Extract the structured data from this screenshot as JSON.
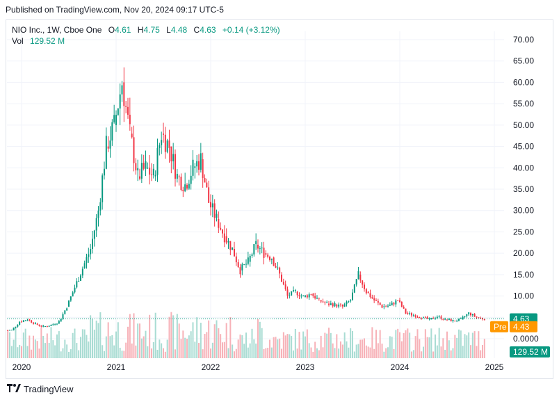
{
  "header": {
    "published": "Published on TradingView.com, Nov 20, 2024 09:17 UTC-5"
  },
  "legend": {
    "symbol": "NIO Inc., 1W, Cboe One",
    "o_label": "O",
    "o_value": "4.61",
    "h_label": "H",
    "h_value": "4.75",
    "l_label": "L",
    "l_value": "4.48",
    "c_label": "C",
    "c_value": "4.63",
    "change": "+0.14 (+3.12%)",
    "vol_label": "Vol",
    "vol_value": "129.52 M"
  },
  "footer": {
    "brand": "TradingView"
  },
  "chart_data": {
    "type": "candlestick",
    "x_tick_labels": [
      "2020",
      "2021",
      "2022",
      "2023",
      "2024",
      "2025"
    ],
    "y_tick_labels": [
      "70.00",
      "65.00",
      "60.00",
      "55.00",
      "50.00",
      "45.00",
      "40.00",
      "35.00",
      "30.00",
      "25.00",
      "20.00",
      "15.00",
      "10.00",
      "5.00",
      "0.0000"
    ],
    "ylim": [
      0,
      72
    ],
    "grid": true,
    "last_price_label": "4.63",
    "premarket_label": "Pre",
    "premarket_value": "4.43",
    "volume_label": "129.52 M",
    "colors": {
      "up": "#089981",
      "down": "#f23645",
      "premarket": "#ff9800",
      "grid": "#f0f3fa"
    },
    "series": [
      {
        "name": "NIO Inc.",
        "dates": [
          "2019-11",
          "2019-12",
          "2020-01",
          "2020-02",
          "2020-03",
          "2020-04",
          "2020-05",
          "2020-06",
          "2020-07",
          "2020-08",
          "2020-09",
          "2020-10",
          "2020-11",
          "2020-12",
          "2021-01",
          "2021-02",
          "2021-03",
          "2021-04",
          "2021-05",
          "2021-06",
          "2021-07",
          "2021-08",
          "2021-09",
          "2021-10",
          "2021-11",
          "2021-12",
          "2022-01",
          "2022-02",
          "2022-03",
          "2022-04",
          "2022-05",
          "2022-06",
          "2022-07",
          "2022-08",
          "2022-09",
          "2022-10",
          "2022-11",
          "2022-12",
          "2023-01",
          "2023-02",
          "2023-03",
          "2023-04",
          "2023-05",
          "2023-06",
          "2023-07",
          "2023-08",
          "2023-09",
          "2023-10",
          "2023-11",
          "2023-12",
          "2024-01",
          "2024-02",
          "2024-03",
          "2024-04",
          "2024-05",
          "2024-06",
          "2024-07",
          "2024-08",
          "2024-09",
          "2024-10",
          "2024-11"
        ],
        "close": [
          2.0,
          4.0,
          4.5,
          3.5,
          2.8,
          3.2,
          4.0,
          7.5,
          12.0,
          16.5,
          21.0,
          30.0,
          45.0,
          50.0,
          60.0,
          48.0,
          38.0,
          40.0,
          38.0,
          48.0,
          45.0,
          38.0,
          36.0,
          40.0,
          42.0,
          32.0,
          28.0,
          24.0,
          21.0,
          16.0,
          18.0,
          22.0,
          20.0,
          19.0,
          15.0,
          10.0,
          11.0,
          9.8,
          10.5,
          9.0,
          8.2,
          8.0,
          7.5,
          9.0,
          15.0,
          11.0,
          9.0,
          7.5,
          7.8,
          9.0,
          6.0,
          5.5,
          5.0,
          4.5,
          5.2,
          4.5,
          4.2,
          4.5,
          6.0,
          5.0,
          4.63
        ]
      }
    ]
  }
}
